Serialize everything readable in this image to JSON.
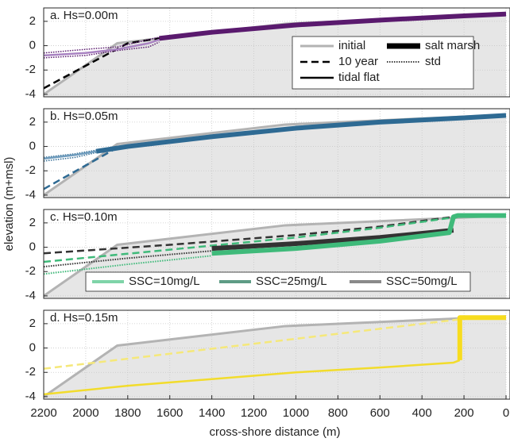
{
  "chart_data": [
    {
      "type": "line",
      "title": "a. Hs=0.00m",
      "xlim": [
        2200,
        0
      ],
      "ylim": [
        -4.2,
        3.1
      ],
      "yticks": [
        -4,
        -2,
        0,
        2
      ],
      "grid": true,
      "legend": [
        {
          "label": "initial",
          "color": "#b3b3b3",
          "style": "solid",
          "width": 3
        },
        {
          "label": "10 year",
          "color": "#000000",
          "style": "dashed",
          "width": 2.5
        },
        {
          "label": "tidal flat",
          "color": "#000000",
          "style": "solid",
          "width": 2.5
        },
        {
          "label": "salt marsh",
          "color": "#000000",
          "style": "solid",
          "width": 7
        },
        {
          "label": "std",
          "color": "#000000",
          "style": "dotted",
          "width": 1.5
        }
      ],
      "series": [
        {
          "x": [
            2200,
            1850,
            1050,
            0
          ],
          "values": [
            -4,
            0.2,
            1.8,
            2.6
          ],
          "color": "#b3b3b3",
          "style": "solid",
          "width": 3,
          "fill": "#e6e6e6"
        },
        {
          "x": [
            2200,
            1800,
            1650,
            1400,
            1000,
            600,
            200,
            0
          ],
          "values": [
            -3.5,
            0.2,
            0.6,
            1.1,
            1.7,
            2.1,
            2.45,
            2.6
          ],
          "color": "#000000",
          "style": "dashed",
          "width": 2.5
        },
        {
          "x": [
            2200,
            2000,
            1850,
            1700,
            1650
          ],
          "values": [
            -0.6,
            -0.3,
            -0.1,
            0.5,
            0.7
          ],
          "color": "#5a1a6e",
          "style": "dotted",
          "width": 1.5
        },
        {
          "x": [
            2200,
            2000,
            1850,
            1700,
            1650
          ],
          "values": [
            -1.0,
            -0.8,
            -0.4,
            -0.1,
            0.3
          ],
          "color": "#5a1a6e",
          "style": "dotted",
          "width": 1.5
        },
        {
          "x": [
            2200,
            2000,
            1850,
            1700,
            1650
          ],
          "values": [
            -0.8,
            -0.6,
            -0.3,
            0.2,
            0.5
          ],
          "color": "#a983c2",
          "style": "solid",
          "width": 2.5
        },
        {
          "x": [
            1650,
            1400,
            1000,
            600,
            200,
            0
          ],
          "values": [
            0.6,
            1.1,
            1.7,
            2.1,
            2.45,
            2.6
          ],
          "color": "#5a1a6e",
          "style": "solid",
          "width": 6
        }
      ]
    },
    {
      "type": "line",
      "title": "b. Hs=0.05m",
      "ylabel": "elevation (m+msl)",
      "xlim": [
        2200,
        0
      ],
      "ylim": [
        -4.2,
        3.1
      ],
      "yticks": [
        -4,
        -2,
        0,
        2
      ],
      "grid": true,
      "series": [
        {
          "x": [
            2200,
            1850,
            1050,
            0
          ],
          "values": [
            -4,
            0.2,
            1.8,
            2.6
          ],
          "color": "#b3b3b3",
          "style": "solid",
          "width": 3,
          "fill": "#e6e6e6"
        },
        {
          "x": [
            2200,
            1850
          ],
          "values": [
            -3.5,
            -0.1
          ],
          "color": "#2e6a93",
          "style": "dashed",
          "width": 2.5
        },
        {
          "x": [
            2200,
            2050,
            1950
          ],
          "values": [
            -0.9,
            -0.6,
            -0.3
          ],
          "color": "#2e6a93",
          "style": "dotted",
          "width": 1.5
        },
        {
          "x": [
            2200,
            2050,
            1950
          ],
          "values": [
            -1.2,
            -0.9,
            -0.5
          ],
          "color": "#2e6a93",
          "style": "dotted",
          "width": 1.5
        },
        {
          "x": [
            2200,
            2050,
            1950
          ],
          "values": [
            -1.0,
            -0.7,
            -0.4
          ],
          "color": "#6f9cbd",
          "style": "solid",
          "width": 2.5
        },
        {
          "x": [
            1950,
            1800,
            1400,
            1000,
            600,
            200,
            0
          ],
          "values": [
            -0.4,
            0,
            0.8,
            1.5,
            2.0,
            2.35,
            2.55
          ],
          "color": "#2e6a93",
          "style": "solid",
          "width": 6
        }
      ]
    },
    {
      "type": "line",
      "title": "c. Hs=0.10m",
      "xlim": [
        2200,
        0
      ],
      "ylim": [
        -4.2,
        3.1
      ],
      "yticks": [
        -4,
        -2,
        0,
        2
      ],
      "grid": true,
      "legend": [
        {
          "label": "SSC=10mg/L",
          "color": "#7fd4a8",
          "style": "solid",
          "width": 4
        },
        {
          "label": "SSC=25mg/L",
          "color": "#5e9c85",
          "style": "solid",
          "width": 4
        },
        {
          "label": "SSC=50mg/L",
          "color": "#8a8a8a",
          "style": "solid",
          "width": 4
        }
      ],
      "series": [
        {
          "x": [
            2200,
            1850,
            1050,
            0
          ],
          "values": [
            -4,
            0.2,
            1.8,
            2.6
          ],
          "color": "#b3b3b3",
          "style": "solid",
          "width": 3,
          "fill": "#e6e6e6"
        },
        {
          "x": [
            2200,
            1600,
            1000,
            600,
            250
          ],
          "values": [
            -0.5,
            0.2,
            1.0,
            1.7,
            2.5
          ],
          "color": "#333333",
          "style": "dashed",
          "width": 2.5
        },
        {
          "x": [
            2200,
            1600,
            1000,
            600,
            250
          ],
          "values": [
            -1.2,
            -0.2,
            0.8,
            1.6,
            2.45
          ],
          "color": "#3fba7a",
          "style": "dashed",
          "width": 2.5
        },
        {
          "x": [
            2200,
            1800,
            1400
          ],
          "values": [
            -1.6,
            -0.9,
            -0.3
          ],
          "color": "#333333",
          "style": "dotted",
          "width": 2
        },
        {
          "x": [
            2200,
            1800,
            1400
          ],
          "values": [
            -2.2,
            -1.4,
            -0.7
          ],
          "color": "#3fba7a",
          "style": "dotted",
          "width": 2
        },
        {
          "x": [
            1400,
            1000,
            600,
            250
          ],
          "values": [
            -0.1,
            0.3,
            0.8,
            1.4
          ],
          "color": "#333333",
          "style": "solid",
          "width": 6
        },
        {
          "x": [
            1400,
            1000,
            600,
            270,
            250,
            230,
            0
          ],
          "values": [
            -0.5,
            -0.1,
            0.5,
            1.2,
            2.5,
            2.6,
            2.6
          ],
          "color": "#3fba7a",
          "style": "solid",
          "width": 6
        }
      ]
    },
    {
      "type": "line",
      "title": "d. Hs=0.15m",
      "xlabel": "cross-shore distance (m)",
      "xlim": [
        2200,
        0
      ],
      "ylim": [
        -4.2,
        3.1
      ],
      "yticks": [
        -4,
        -2,
        0,
        2
      ],
      "xticks": [
        2200,
        2000,
        1800,
        1600,
        1400,
        1200,
        1000,
        800,
        600,
        400,
        200,
        0
      ],
      "grid": true,
      "series": [
        {
          "x": [
            2200,
            1850,
            1050,
            0
          ],
          "values": [
            -4,
            0.2,
            1.8,
            2.6
          ],
          "color": "#b3b3b3",
          "style": "solid",
          "width": 3,
          "fill": "#e6e6e6"
        },
        {
          "x": [
            2200,
            200
          ],
          "values": [
            -1.7,
            2.4
          ],
          "color": "#f5e87a",
          "style": "dashed",
          "width": 2.5
        },
        {
          "x": [
            2200,
            1800,
            1000,
            600,
            250,
            220
          ],
          "values": [
            -3.8,
            -3.1,
            -2.0,
            -1.6,
            -1.2,
            -1.0
          ],
          "color": "#f2dc2c",
          "style": "solid",
          "width": 2.5
        },
        {
          "x": [
            220,
            220,
            0
          ],
          "values": [
            -1.0,
            2.5,
            2.5
          ],
          "color": "#f7dc1e",
          "style": "solid",
          "width": 6
        }
      ]
    }
  ]
}
